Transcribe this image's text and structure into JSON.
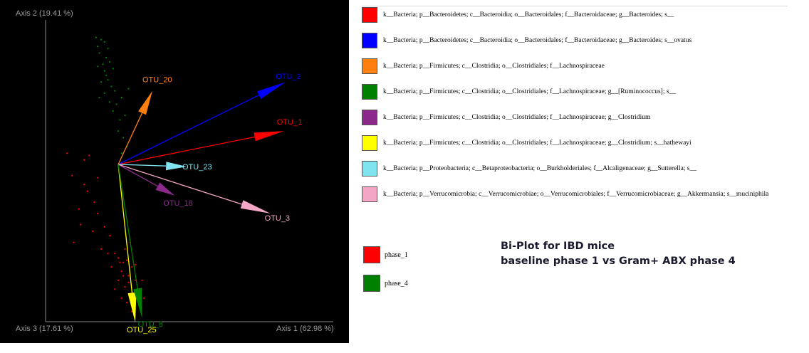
{
  "chart_data": {
    "type": "scatter",
    "title": "",
    "xlabel": "Axis 1 (62.98 %)",
    "ylabel": "Axis 2 (19.41 %)",
    "zlabel": "Axis 3 (17.61 %)",
    "xlim": [
      -0.5,
      1.0
    ],
    "ylim": [
      -0.78,
      0.65
    ],
    "origin": [
      0,
      0
    ],
    "grid": false,
    "legend_placement": "right",
    "series": [
      {
        "name": "phase_1",
        "color": "#ff0000",
        "points": [
          [
            -0.3,
            0.05
          ],
          [
            -0.27,
            -0.05
          ],
          [
            -0.2,
            0.02
          ],
          [
            -0.18,
            -0.12
          ],
          [
            -0.23,
            -0.2
          ],
          [
            -0.15,
            -0.3
          ],
          [
            -0.12,
            -0.22
          ],
          [
            -0.26,
            -0.35
          ],
          [
            -0.08,
            -0.28
          ],
          [
            -0.05,
            -0.32
          ],
          [
            -0.1,
            -0.38
          ],
          [
            -0.02,
            -0.4
          ],
          [
            0.0,
            -0.42
          ],
          [
            0.03,
            -0.44
          ],
          [
            0.05,
            -0.43
          ],
          [
            0.02,
            -0.48
          ],
          [
            0.06,
            -0.5
          ],
          [
            0.08,
            -0.46
          ],
          [
            0.1,
            -0.52
          ],
          [
            0.04,
            -0.55
          ],
          [
            0.07,
            -0.58
          ],
          [
            0.11,
            -0.56
          ],
          [
            0.0,
            -0.52
          ],
          [
            -0.02,
            -0.56
          ],
          [
            0.09,
            -0.6
          ],
          [
            0.12,
            -0.62
          ],
          [
            0.05,
            -0.62
          ],
          [
            0.02,
            -0.6
          ],
          [
            0.08,
            -0.66
          ],
          [
            0.13,
            -0.58
          ],
          [
            0.03,
            -0.5
          ],
          [
            -0.04,
            -0.46
          ],
          [
            0.1,
            -0.45
          ],
          [
            0.15,
            -0.6
          ],
          [
            0.14,
            -0.52
          ],
          [
            0.06,
            -0.53
          ],
          [
            0.01,
            -0.44
          ],
          [
            -0.06,
            -0.4
          ],
          [
            0.04,
            -0.38
          ],
          [
            0.07,
            -0.35
          ],
          [
            -0.14,
            -0.17
          ],
          [
            -0.2,
            -0.09
          ],
          [
            -0.12,
            -0.06
          ],
          [
            -0.17,
            0.04
          ],
          [
            -0.22,
            -0.27
          ]
        ]
      },
      {
        "name": "phase_4",
        "color": "#008000",
        "points": [
          [
            -0.13,
            0.57
          ],
          [
            -0.1,
            0.56
          ],
          [
            -0.12,
            0.53
          ],
          [
            -0.08,
            0.55
          ],
          [
            -0.06,
            0.52
          ],
          [
            -0.11,
            0.5
          ],
          [
            -0.07,
            0.48
          ],
          [
            -0.09,
            0.45
          ],
          [
            -0.05,
            0.46
          ],
          [
            -0.03,
            0.43
          ],
          [
            -0.08,
            0.42
          ],
          [
            -0.06,
            0.38
          ],
          [
            -0.1,
            0.37
          ],
          [
            -0.04,
            0.35
          ],
          [
            -0.02,
            0.33
          ],
          [
            -0.08,
            0.32
          ],
          [
            -0.05,
            0.28
          ],
          [
            -0.01,
            0.27
          ],
          [
            0.02,
            0.3
          ],
          [
            -0.03,
            0.24
          ],
          [
            0.01,
            0.2
          ],
          [
            0.04,
            0.22
          ],
          [
            0.0,
            0.15
          ],
          [
            0.03,
            0.12
          ],
          [
            0.05,
            0.08
          ],
          [
            0.02,
            0.05
          ],
          [
            -0.12,
            0.44
          ],
          [
            -0.07,
            0.4
          ],
          [
            -0.11,
            0.3
          ],
          [
            0.06,
            0.34
          ]
        ]
      }
    ],
    "vectors": [
      {
        "label": "OTU_1",
        "x": 0.97,
        "y": 0.15,
        "color": "#ff0000"
      },
      {
        "label": "OTU_2",
        "x": 0.98,
        "y": 0.37,
        "color": "#0000ff"
      },
      {
        "label": "OTU_20",
        "x": 0.2,
        "y": 0.33,
        "color": "#ff7f0e"
      },
      {
        "label": "OTU_23",
        "x": 0.4,
        "y": -0.01,
        "color": "#7fe4ef"
      },
      {
        "label": "OTU_18",
        "x": 0.33,
        "y": -0.14,
        "color": "#8b2a8b"
      },
      {
        "label": "OTU_3",
        "x": 0.89,
        "y": -0.22,
        "color": "#f4a6c6"
      },
      {
        "label": "OTU_25",
        "x": 0.1,
        "y": -0.71,
        "color": "#ffff00"
      },
      {
        "label": "OTU_8",
        "x": 0.14,
        "y": -0.69,
        "color": "#008000"
      }
    ]
  },
  "legend_taxa": [
    {
      "color": "#ff0000",
      "text": "k__Bacteria; p__Bacteroidetes; c__Bacteroidia; o__Bacteroidales; f__Bacteroidaceae; g__Bacteroides; s__"
    },
    {
      "color": "#0000ff",
      "text": "k__Bacteria; p__Bacteroidetes; c__Bacteroidia; o__Bacteroidales; f__Bacteroidaceae; g__Bacteroides; s__ovatus"
    },
    {
      "color": "#ff7f0e",
      "text": "k__Bacteria; p__Firmicutes; c__Clostridia; o__Clostridiales; f__Lachnospiraceae"
    },
    {
      "color": "#008000",
      "text": "k__Bacteria; p__Firmicutes; c__Clostridia; o__Clostridiales; f__Lachnospiraceae; g__[Ruminococcus]; s__"
    },
    {
      "color": "#8b2a8b",
      "text": "k__Bacteria; p__Firmicutes; c__Clostridia; o__Clostridiales; f__Lachnospiraceae; g__Clostridium"
    },
    {
      "color": "#ffff00",
      "text": "k__Bacteria; p__Firmicutes; c__Clostridia; o__Clostridiales; f__Lachnospiraceae; g__Clostridium; s__hathewayi"
    },
    {
      "color": "#7fe4ef",
      "text": "k__Bacteria; p__Proteobacteria; c__Betaproteobacteria; o__Burkholderiales; f__Alcaligenaceae; g__Sutterella; s__"
    },
    {
      "color": "#f4a6c6",
      "text": "k__Bacteria; p__Verrucomicrobia; c__Verrucomicrobiae; o__Verrucomicrobiales; f__Verrucomicrobiaceae; g__Akkermansia; s__muciniphila"
    }
  ],
  "legend_phases": [
    {
      "color": "#ff0000",
      "text": "phase_1"
    },
    {
      "color": "#008000",
      "text": "phase_4"
    }
  ],
  "note": {
    "line1": "Bi-Plot for IBD mice",
    "line2": "baseline phase 1 vs Gram+ ABX phase 4"
  }
}
